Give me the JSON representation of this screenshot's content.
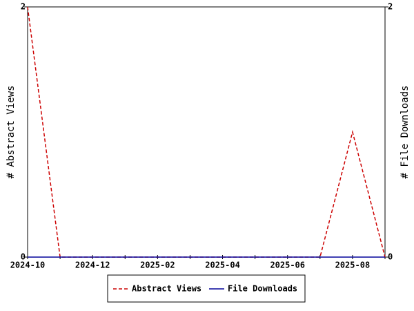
{
  "chart_data": {
    "type": "line",
    "categories": [
      "2024-10",
      null,
      "2024-12",
      null,
      "2025-02",
      null,
      "2025-04",
      null,
      "2025-06",
      null,
      "2025-08",
      null
    ],
    "series": [
      {
        "name": "Abstract Views",
        "color": "#cc0000",
        "dash": true,
        "values": [
          2,
          0,
          0,
          0,
          0,
          0,
          0,
          0,
          0,
          0,
          1,
          0
        ]
      },
      {
        "name": "File Downloads",
        "color": "#000099",
        "dash": false,
        "axis": "y2",
        "values": [
          0,
          0,
          0,
          0,
          0,
          0,
          0,
          0,
          0,
          0,
          0,
          0
        ]
      }
    ],
    "ylabel": "# Abstract Views",
    "y2label": "# File Downloads",
    "ylim": [
      0,
      2
    ],
    "yticks": [
      0,
      2
    ],
    "y2lim": [
      0,
      2
    ],
    "y2ticks": [
      0,
      2
    ],
    "legend": "bottom"
  }
}
